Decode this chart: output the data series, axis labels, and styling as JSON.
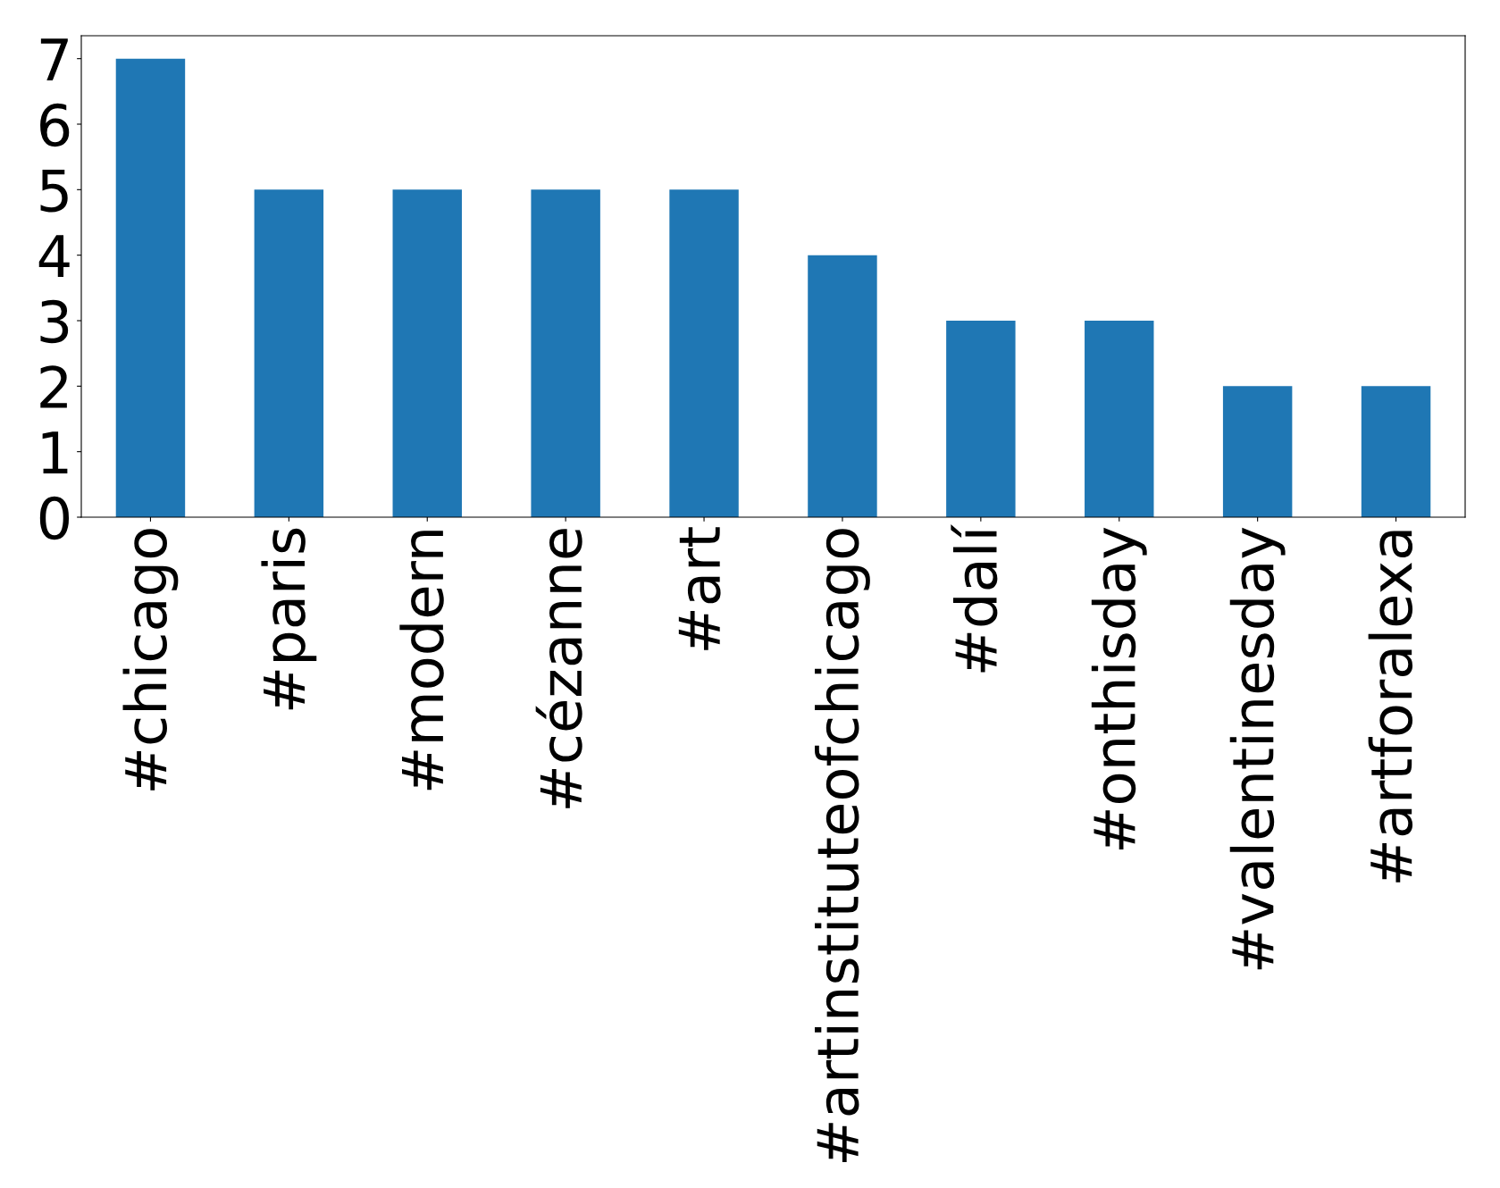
{
  "chart_data": {
    "type": "bar",
    "categories": [
      "#chicago",
      "#paris",
      "#modern",
      "#cézanne",
      "#art",
      "#artinstituteofchicago",
      "#dalí",
      "#onthisday",
      "#valentinesday",
      "#artforalexa"
    ],
    "values": [
      7,
      5,
      5,
      5,
      5,
      4,
      3,
      3,
      2,
      2
    ],
    "color": "#1f77b4",
    "ylim": [
      0,
      7.35
    ],
    "yticks": [
      0,
      1,
      2,
      3,
      4,
      5,
      6,
      7
    ],
    "grid": false,
    "legend": false
  }
}
